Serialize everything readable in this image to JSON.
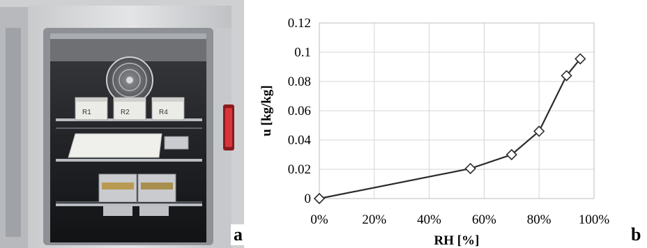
{
  "panels": {
    "left_label": "a",
    "right_label": "b"
  },
  "photo": {
    "sample_labels": [
      "R1",
      "R2",
      "R4"
    ],
    "colors": {
      "chamber_frame": "#d9dadc",
      "interior": "#1c1d20",
      "shelf": "#b8bcc2",
      "sample_box": "#e9e9e6",
      "foil_tray": "#c9cbce",
      "door_handle": "#c3272b"
    }
  },
  "chart_data": {
    "type": "line",
    "title": "",
    "xlabel": "RH [%]",
    "ylabel": "u [kg/kg]",
    "xlim": [
      0,
      100
    ],
    "ylim": [
      0,
      0.12
    ],
    "x_ticks": [
      0,
      20,
      40,
      60,
      80,
      100
    ],
    "x_tick_labels": [
      "0%",
      "20%",
      "40%",
      "60%",
      "80%",
      "100%"
    ],
    "y_ticks": [
      0,
      0.02,
      0.04,
      0.06,
      0.08,
      0.1,
      0.12
    ],
    "y_tick_labels": [
      "0",
      "0.02",
      "0.04",
      "0.06",
      "0.08",
      "0.1",
      "0.12"
    ],
    "grid": true,
    "legend": "none",
    "marker": "diamond",
    "series": [
      {
        "x": [
          0,
          55,
          70,
          80,
          90,
          95
        ],
        "y": [
          0,
          0.0205,
          0.03,
          0.046,
          0.084,
          0.0955
        ]
      }
    ],
    "colors": {
      "line": "#2b2b2b",
      "grid": "#d4d4d4",
      "marker_fill": "#ffffff"
    }
  }
}
